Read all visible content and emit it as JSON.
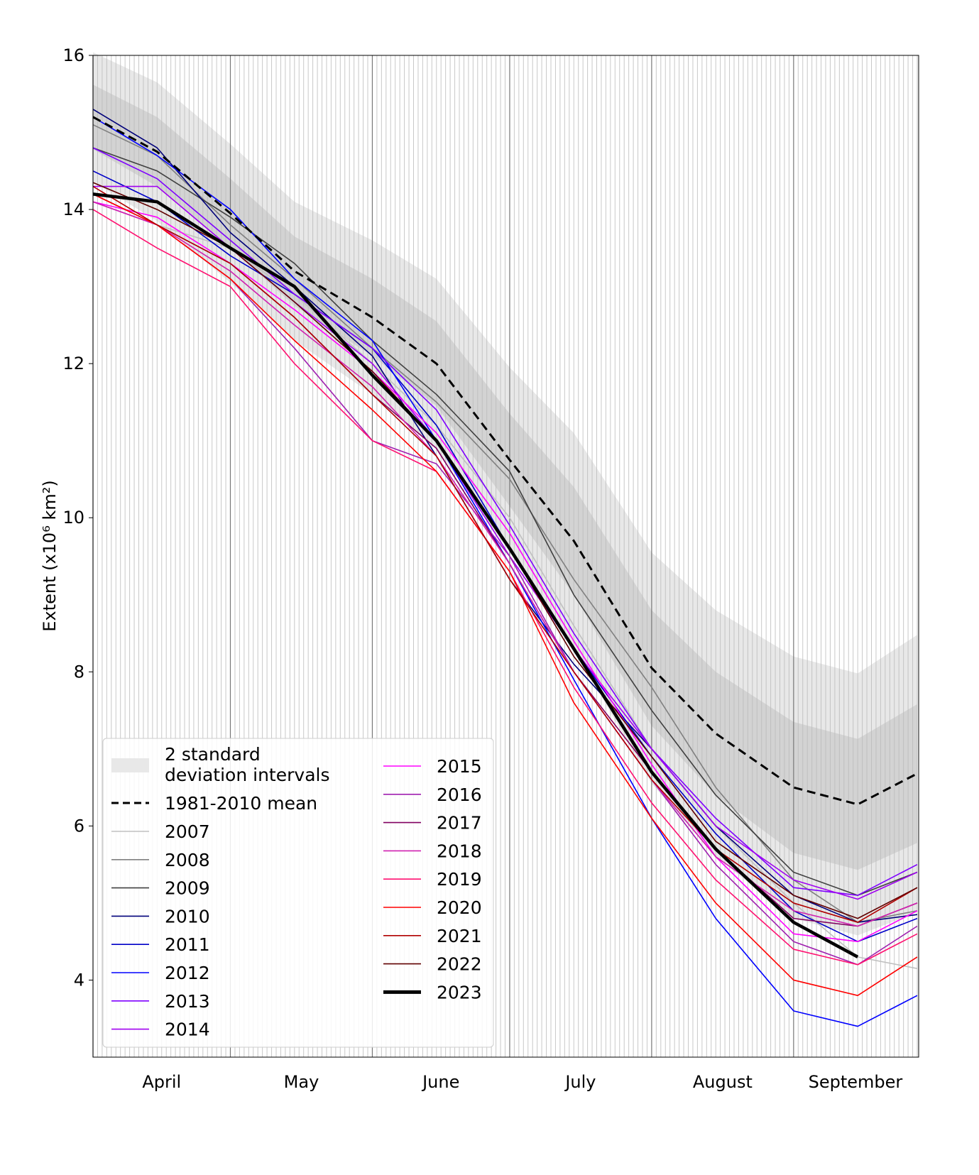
{
  "chart_data": {
    "type": "line",
    "title": "",
    "xlabel": "",
    "ylabel": "Extent (x10⁶ km²)",
    "ylim": [
      3,
      16
    ],
    "yticks": [
      4,
      6,
      8,
      10,
      12,
      14,
      16
    ],
    "x_range": [
      "04-01",
      "09-30"
    ],
    "grid": "daily vertical lines, darker at month boundaries",
    "month_labels": [
      "April",
      "May",
      "June",
      "July",
      "August",
      "September"
    ],
    "legend_placement": "lower-left",
    "x": [
      "04-01",
      "04-15",
      "05-01",
      "05-15",
      "06-01",
      "06-15",
      "07-01",
      "07-15",
      "08-01",
      "08-15",
      "09-01",
      "09-15",
      "09-28"
    ],
    "mean": {
      "name": "1981-2010 mean",
      "color": "#000000",
      "values": [
        15.2,
        14.75,
        13.95,
        13.2,
        12.6,
        12.0,
        10.75,
        9.7,
        8.05,
        7.2,
        6.5,
        6.28,
        6.68
      ]
    },
    "std": {
      "name": "2 standard deviation intervals",
      "sd": [
        0.42,
        0.45,
        0.45,
        0.45,
        0.5,
        0.55,
        0.6,
        0.7,
        0.75,
        0.8,
        0.85,
        0.85,
        0.9
      ],
      "inner_color": "#d3d3d3",
      "outer_color": "#e8e8e8"
    },
    "series": [
      {
        "name": "2007",
        "color": "#c0c0c0",
        "width": 1.6,
        "values": [
          14.2,
          13.8,
          13.5,
          12.9,
          12.0,
          11.2,
          10.0,
          8.6,
          7.0,
          6.0,
          5.0,
          4.3,
          4.15
        ]
      },
      {
        "name": "2008",
        "color": "#808080",
        "width": 1.6,
        "values": [
          15.1,
          14.7,
          13.8,
          13.1,
          12.2,
          11.5,
          10.5,
          9.2,
          7.8,
          6.5,
          5.3,
          4.75,
          4.9
        ]
      },
      {
        "name": "2009",
        "color": "#404040",
        "width": 1.6,
        "values": [
          14.8,
          14.5,
          13.9,
          13.3,
          12.3,
          11.6,
          10.6,
          9.0,
          7.5,
          6.4,
          5.4,
          5.1,
          5.4
        ]
      },
      {
        "name": "2010",
        "color": "#00007a",
        "width": 1.6,
        "values": [
          15.3,
          14.8,
          13.7,
          13.0,
          12.1,
          10.8,
          9.2,
          8.1,
          7.0,
          6.0,
          5.1,
          4.75,
          4.85
        ]
      },
      {
        "name": "2011",
        "color": "#0000c8",
        "width": 1.6,
        "values": [
          14.5,
          14.1,
          13.4,
          12.9,
          12.2,
          11.2,
          9.6,
          8.3,
          6.9,
          5.9,
          4.9,
          4.5,
          4.8
        ]
      },
      {
        "name": "2012",
        "color": "#0000ff",
        "width": 1.6,
        "values": [
          15.2,
          14.7,
          14.0,
          13.1,
          12.3,
          11.0,
          9.4,
          7.9,
          6.1,
          4.8,
          3.6,
          3.4,
          3.8
        ]
      },
      {
        "name": "2013",
        "color": "#7f00ff",
        "width": 1.6,
        "values": [
          14.8,
          14.4,
          13.6,
          12.9,
          12.2,
          11.4,
          9.9,
          8.5,
          7.0,
          6.1,
          5.2,
          5.1,
          5.5
        ]
      },
      {
        "name": "2014",
        "color": "#a000f0",
        "width": 1.6,
        "values": [
          14.3,
          14.3,
          13.5,
          12.8,
          12.0,
          11.0,
          9.5,
          8.3,
          7.0,
          6.0,
          5.3,
          5.05,
          5.4
        ]
      },
      {
        "name": "2015",
        "color": "#ff00ff",
        "width": 1.6,
        "values": [
          14.1,
          13.9,
          13.3,
          12.7,
          11.9,
          11.1,
          9.8,
          8.4,
          6.8,
          5.6,
          4.6,
          4.5,
          4.9
        ]
      },
      {
        "name": "2016",
        "color": "#a020b0",
        "width": 1.6,
        "values": [
          14.1,
          13.8,
          13.1,
          12.2,
          11.0,
          10.7,
          9.5,
          8.0,
          6.6,
          5.5,
          4.5,
          4.2,
          4.7
        ]
      },
      {
        "name": "2017",
        "color": "#800060",
        "width": 1.6,
        "values": [
          14.2,
          13.8,
          13.3,
          12.6,
          11.6,
          10.9,
          9.4,
          8.0,
          6.7,
          5.7,
          4.8,
          4.7,
          5.0
        ]
      },
      {
        "name": "2018",
        "color": "#d020b0",
        "width": 1.6,
        "values": [
          14.1,
          13.8,
          13.2,
          12.5,
          11.7,
          10.8,
          9.4,
          8.0,
          6.6,
          5.6,
          4.9,
          4.7,
          5.0
        ]
      },
      {
        "name": "2019",
        "color": "#ff1070",
        "width": 1.6,
        "values": [
          14.0,
          13.5,
          13.0,
          12.0,
          11.0,
          10.6,
          9.3,
          7.8,
          6.3,
          5.3,
          4.4,
          4.2,
          4.6
        ]
      },
      {
        "name": "2020",
        "color": "#ff0000",
        "width": 1.6,
        "values": [
          14.2,
          13.8,
          13.1,
          12.3,
          11.4,
          10.6,
          9.3,
          7.6,
          6.1,
          5.0,
          4.0,
          3.8,
          4.3
        ]
      },
      {
        "name": "2021",
        "color": "#b00000",
        "width": 1.6,
        "values": [
          14.3,
          13.8,
          13.3,
          12.6,
          11.6,
          10.8,
          9.2,
          8.0,
          6.6,
          5.7,
          5.0,
          4.75,
          5.2
        ]
      },
      {
        "name": "2022",
        "color": "#600000",
        "width": 1.6,
        "values": [
          14.35,
          14.0,
          13.5,
          12.8,
          11.9,
          11.0,
          9.6,
          8.2,
          6.9,
          5.8,
          5.1,
          4.8,
          5.2
        ]
      },
      {
        "name": "2023",
        "color": "#000000",
        "width": 4.5,
        "values": [
          14.2,
          14.1,
          13.5,
          13.0,
          11.85,
          11.0,
          9.6,
          8.3,
          6.7,
          5.7,
          4.75,
          4.3,
          null
        ]
      }
    ]
  }
}
